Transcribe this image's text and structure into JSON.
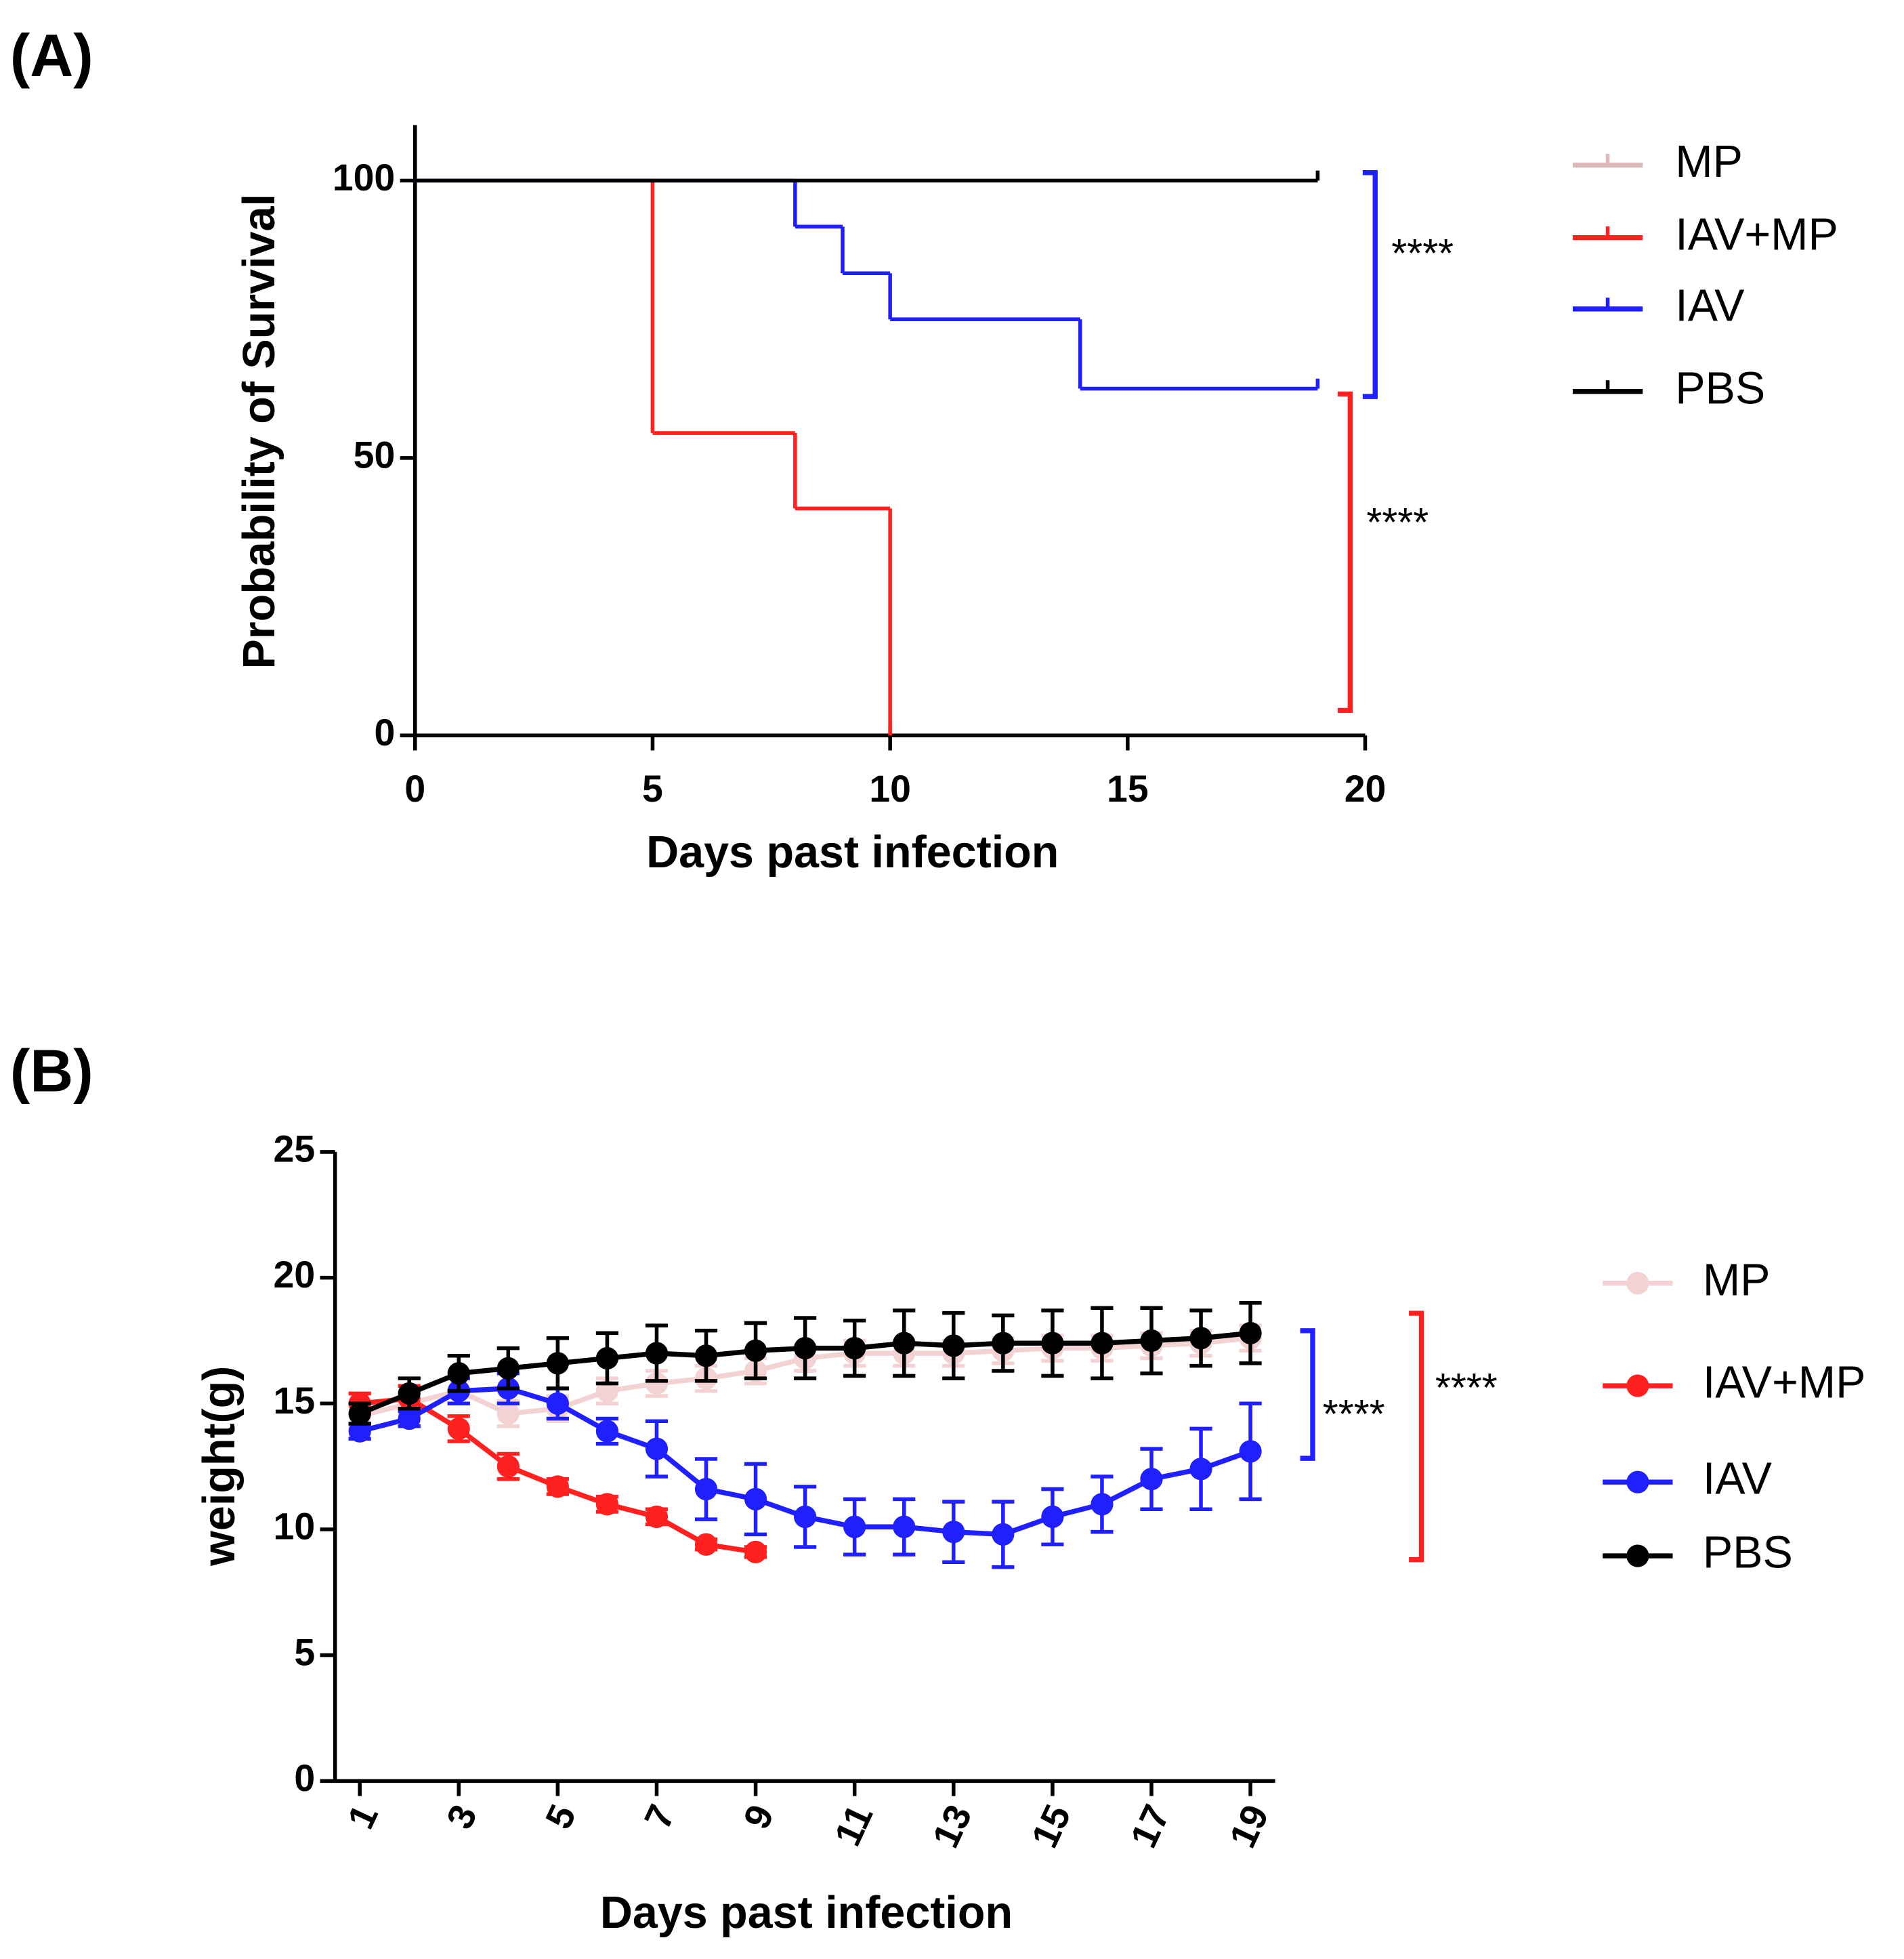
{
  "chart_data": [
    {
      "type": "step",
      "panel_label": "(A)",
      "x_label": "Days past infection",
      "y_label": "Probability of Survival",
      "xlim": [
        0,
        20
      ],
      "xticks": [
        0,
        5,
        10,
        15,
        20
      ],
      "ylim": [
        0,
        110
      ],
      "yticks": [
        0,
        50,
        100
      ],
      "series": [
        {
          "name": "MP",
          "color": "#d9b9b9",
          "x": [
            0,
            19
          ],
          "values": [
            100,
            100
          ]
        },
        {
          "name": "IAV+MP",
          "color": "#ff2020",
          "x": [
            0,
            5,
            8,
            10
          ],
          "values": [
            100,
            54.5,
            40.9,
            0
          ]
        },
        {
          "name": "IAV",
          "color": "#2020ff",
          "x": [
            0,
            8,
            9,
            10,
            14,
            19
          ],
          "values": [
            100,
            91.7,
            83.3,
            75,
            62.5,
            62.5
          ]
        },
        {
          "name": "PBS",
          "color": "#000000",
          "x": [
            0,
            19
          ],
          "values": [
            100,
            100
          ]
        }
      ],
      "annotations": [
        {
          "text": "****",
          "color": "#2020ff"
        },
        {
          "text": "****",
          "color": "#ff2020"
        }
      ]
    },
    {
      "type": "line",
      "panel_label": "(B)",
      "x_label": "Days past infection",
      "y_label": "weight(g)",
      "xlim": [
        0.5,
        19.5
      ],
      "xticks": [
        1,
        3,
        5,
        7,
        9,
        11,
        13,
        15,
        17,
        19
      ],
      "ylim": [
        0,
        25
      ],
      "yticks": [
        0,
        5,
        10,
        15,
        20,
        25
      ],
      "x": [
        1,
        2,
        3,
        4,
        5,
        6,
        7,
        8,
        9,
        10,
        11,
        12,
        13,
        14,
        15,
        16,
        17,
        18,
        19
      ],
      "series": [
        {
          "name": "MP",
          "color": "#f2d2d2",
          "values": [
            14.5,
            15.0,
            15.5,
            14.6,
            14.8,
            15.5,
            15.8,
            16.0,
            16.3,
            16.8,
            17.0,
            17.0,
            17.0,
            17.1,
            17.2,
            17.2,
            17.3,
            17.4,
            17.6
          ],
          "errors": [
            0.4,
            0.4,
            0.5,
            0.5,
            0.5,
            0.5,
            0.5,
            0.5,
            0.5,
            0.5,
            0.5,
            0.5,
            0.5,
            0.5,
            0.5,
            0.5,
            0.5,
            0.5,
            0.5
          ]
        },
        {
          "name": "IAV+MP",
          "color": "#ff2020",
          "values": [
            15.0,
            15.2,
            14.0,
            12.5,
            11.7,
            11.0,
            10.5,
            9.4,
            9.1,
            null,
            null,
            null,
            null,
            null,
            null,
            null,
            null,
            null,
            null
          ],
          "errors": [
            0.4,
            0.5,
            0.5,
            0.5,
            0.3,
            0.3,
            0.3,
            0.2,
            0.2,
            null,
            null,
            null,
            null,
            null,
            null,
            null,
            null,
            null,
            null
          ]
        },
        {
          "name": "IAV",
          "color": "#2020ff",
          "values": [
            13.9,
            14.4,
            15.5,
            15.6,
            15.0,
            13.9,
            13.2,
            11.6,
            11.2,
            10.5,
            10.1,
            10.1,
            9.9,
            9.8,
            10.5,
            11.0,
            12.0,
            12.4,
            13.1
          ],
          "errors": [
            0.3,
            0.3,
            0.5,
            0.6,
            0.6,
            0.5,
            1.1,
            1.2,
            1.4,
            1.2,
            1.1,
            1.1,
            1.2,
            1.3,
            1.1,
            1.1,
            1.2,
            1.6,
            1.9
          ]
        },
        {
          "name": "PBS",
          "color": "#000000",
          "values": [
            14.6,
            15.4,
            16.2,
            16.4,
            16.6,
            16.8,
            17.0,
            16.9,
            17.1,
            17.2,
            17.2,
            17.4,
            17.3,
            17.4,
            17.4,
            17.4,
            17.5,
            17.6,
            17.8
          ],
          "errors": [
            0.4,
            0.6,
            0.7,
            0.8,
            1.0,
            1.0,
            1.1,
            1.0,
            1.1,
            1.2,
            1.1,
            1.3,
            1.3,
            1.1,
            1.3,
            1.4,
            1.3,
            1.1,
            1.2
          ]
        }
      ],
      "annotations": [
        {
          "text": "****",
          "color": "#2020ff"
        },
        {
          "text": "****",
          "color": "#ff2020"
        }
      ]
    }
  ]
}
